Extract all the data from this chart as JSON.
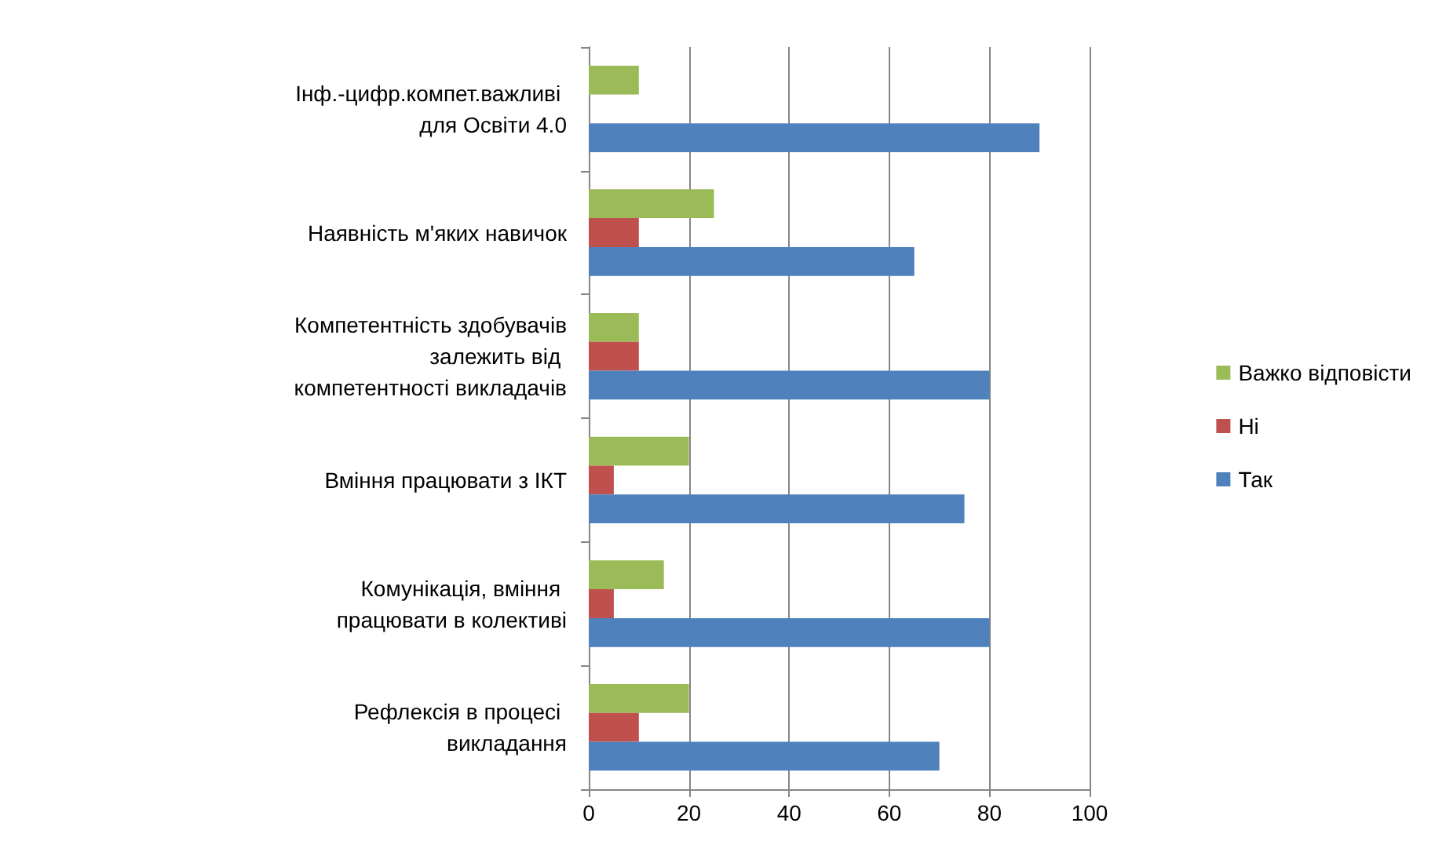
{
  "chart_data": {
    "type": "bar",
    "orientation": "horizontal",
    "categories": [
      "Інф.-цифр.компет.важливі для Освіти 4.0",
      "Наявність м'яких навичок",
      "Компетентність здобувачів залежить від компетентності викладачів",
      "Вміння працювати з ІКТ",
      "Комунікація, вміння працювати в колективі",
      "Рефлексія в процесі викладання"
    ],
    "series": [
      {
        "name": "Важко відповісти",
        "color": "#9bbb59",
        "values": [
          10,
          25,
          10,
          20,
          15,
          20
        ]
      },
      {
        "name": "Ні",
        "color": "#c0504d",
        "values": [
          0,
          10,
          10,
          5,
          5,
          10
        ]
      },
      {
        "name": "Так",
        "color": "#4f81bd",
        "values": [
          90,
          65,
          80,
          75,
          80,
          70
        ]
      }
    ],
    "xlim": [
      0,
      100
    ],
    "xticks": [
      0,
      20,
      40,
      60,
      80,
      100
    ],
    "grid": "x",
    "legend": "right"
  }
}
